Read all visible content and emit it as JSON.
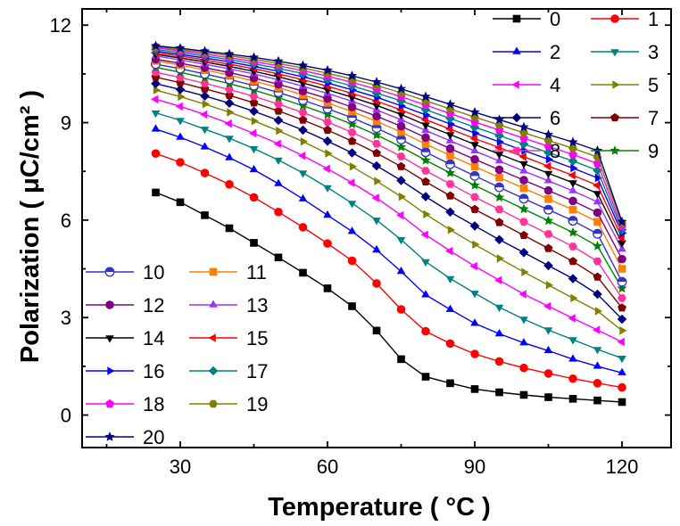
{
  "chart_data": {
    "type": "line",
    "xlabel": "Temperature ( °C )",
    "ylabel": "Polarization ( μC/cm² )",
    "xlim": [
      10,
      130
    ],
    "ylim": [
      -1,
      12.5
    ],
    "xticks": [
      30,
      60,
      90,
      120
    ],
    "yticks": [
      0,
      3,
      6,
      9,
      12
    ],
    "x": [
      25,
      30,
      35,
      40,
      45,
      50,
      55,
      60,
      65,
      70,
      75,
      80,
      85,
      90,
      95,
      100,
      105,
      110,
      115,
      120
    ],
    "series": [
      {
        "name": "0",
        "color": "#000000",
        "marker": "square",
        "values": [
          6.85,
          6.55,
          6.15,
          5.75,
          5.3,
          4.85,
          4.38,
          3.9,
          3.35,
          2.6,
          1.72,
          1.18,
          0.98,
          0.8,
          0.7,
          0.62,
          0.55,
          0.5,
          0.45,
          0.4
        ]
      },
      {
        "name": "1",
        "color": "#ff0000",
        "marker": "circle",
        "values": [
          8.05,
          7.78,
          7.45,
          7.1,
          6.7,
          6.25,
          5.78,
          5.28,
          4.75,
          4.05,
          3.25,
          2.58,
          2.2,
          1.88,
          1.65,
          1.45,
          1.28,
          1.12,
          0.98,
          0.85
        ]
      },
      {
        "name": "2",
        "color": "#0000ff",
        "marker": "triangle-up",
        "values": [
          8.8,
          8.55,
          8.25,
          7.92,
          7.55,
          7.12,
          6.65,
          6.15,
          5.65,
          5.08,
          4.42,
          3.7,
          3.25,
          2.82,
          2.5,
          2.22,
          1.98,
          1.72,
          1.5,
          1.3
        ]
      },
      {
        "name": "3",
        "color": "#008080",
        "marker": "triangle-down",
        "values": [
          9.3,
          9.07,
          8.8,
          8.52,
          8.2,
          7.85,
          7.45,
          7.0,
          6.52,
          6.0,
          5.4,
          4.72,
          4.2,
          3.75,
          3.32,
          2.95,
          2.62,
          2.32,
          2.02,
          1.75
        ]
      },
      {
        "name": "4",
        "color": "#ff00ff",
        "marker": "triangle-left",
        "values": [
          9.72,
          9.5,
          9.25,
          8.97,
          8.67,
          8.35,
          7.98,
          7.58,
          7.15,
          6.68,
          6.15,
          5.55,
          5.05,
          4.58,
          4.15,
          3.72,
          3.35,
          2.98,
          2.62,
          2.25
        ]
      },
      {
        "name": "5",
        "color": "#808000",
        "marker": "triangle-right",
        "values": [
          10.0,
          9.8,
          9.57,
          9.32,
          9.05,
          8.75,
          8.42,
          8.05,
          7.65,
          7.2,
          6.72,
          6.18,
          5.7,
          5.25,
          4.82,
          4.4,
          4.0,
          3.6,
          3.2,
          2.6
        ]
      },
      {
        "name": "6",
        "color": "#000080",
        "marker": "diamond",
        "values": [
          10.2,
          10.02,
          9.82,
          9.6,
          9.35,
          9.07,
          8.77,
          8.43,
          8.07,
          7.67,
          7.22,
          6.72,
          6.25,
          5.82,
          5.4,
          5.0,
          4.6,
          4.2,
          3.72,
          2.95
        ]
      },
      {
        "name": "7",
        "color": "#800000",
        "marker": "pentagon",
        "values": [
          10.4,
          10.23,
          10.04,
          9.84,
          9.61,
          9.36,
          9.08,
          8.77,
          8.43,
          8.06,
          7.65,
          7.18,
          6.75,
          6.33,
          5.93,
          5.53,
          5.13,
          4.73,
          4.25,
          3.3
        ]
      },
      {
        "name": "8",
        "color": "#ff3399",
        "marker": "hexagon",
        "values": [
          10.55,
          10.39,
          10.21,
          10.02,
          9.81,
          9.57,
          9.31,
          9.02,
          8.7,
          8.35,
          7.96,
          7.52,
          7.11,
          6.71,
          6.33,
          5.95,
          5.57,
          5.19,
          4.73,
          3.6
        ]
      },
      {
        "name": "9",
        "color": "#008000",
        "marker": "star",
        "values": [
          10.7,
          10.55,
          10.38,
          10.2,
          10.0,
          9.77,
          9.52,
          9.25,
          8.95,
          8.62,
          8.25,
          7.84,
          7.45,
          7.07,
          6.7,
          6.34,
          5.98,
          5.62,
          5.2,
          3.9
        ]
      },
      {
        "name": "10",
        "color": "#3333cc",
        "marker": "circle-half",
        "values": [
          10.8,
          10.66,
          10.5,
          10.33,
          10.14,
          9.93,
          9.69,
          9.43,
          9.15,
          8.83,
          8.48,
          8.09,
          7.72,
          7.36,
          7.01,
          6.66,
          6.32,
          5.98,
          5.58,
          4.1
        ]
      },
      {
        "name": "11",
        "color": "#ff8000",
        "marker": "square",
        "values": [
          10.9,
          10.77,
          10.62,
          10.46,
          10.28,
          10.08,
          9.85,
          9.61,
          9.34,
          9.04,
          8.71,
          8.34,
          7.99,
          7.65,
          7.31,
          6.98,
          6.65,
          6.32,
          5.95,
          4.5
        ]
      },
      {
        "name": "12",
        "color": "#800080",
        "marker": "circle",
        "values": [
          10.95,
          10.83,
          10.69,
          10.54,
          10.37,
          10.18,
          9.97,
          9.74,
          9.48,
          9.2,
          8.89,
          8.54,
          8.2,
          7.87,
          7.55,
          7.23,
          6.91,
          6.59,
          6.23,
          4.8
        ]
      },
      {
        "name": "13",
        "color": "#9933ff",
        "marker": "triangle-up",
        "values": [
          11.05,
          10.93,
          10.8,
          10.66,
          10.5,
          10.32,
          10.12,
          9.9,
          9.66,
          9.39,
          9.09,
          8.76,
          8.44,
          8.13,
          7.82,
          7.51,
          7.21,
          6.9,
          6.56,
          5.1
        ]
      },
      {
        "name": "14",
        "color": "#000000",
        "marker": "triangle-down",
        "values": [
          11.1,
          10.99,
          10.87,
          10.73,
          10.58,
          10.41,
          10.22,
          10.01,
          9.78,
          9.53,
          9.25,
          8.93,
          8.63,
          8.33,
          8.03,
          7.74,
          7.44,
          7.15,
          6.82,
          5.3
        ]
      },
      {
        "name": "15",
        "color": "#ff0000",
        "marker": "triangle-left",
        "values": [
          11.15,
          11.05,
          10.93,
          10.8,
          10.66,
          10.5,
          10.32,
          10.12,
          9.9,
          9.66,
          9.39,
          9.09,
          8.8,
          8.51,
          8.23,
          7.95,
          7.66,
          7.38,
          7.07,
          5.45
        ]
      },
      {
        "name": "16",
        "color": "#0000ff",
        "marker": "triangle-right",
        "values": [
          11.2,
          11.1,
          10.99,
          10.87,
          10.73,
          10.58,
          10.41,
          10.22,
          10.01,
          9.78,
          9.52,
          9.24,
          8.96,
          8.68,
          8.41,
          8.14,
          7.87,
          7.6,
          7.3,
          5.6
        ]
      },
      {
        "name": "17",
        "color": "#008080",
        "marker": "diamond",
        "values": [
          11.25,
          11.16,
          11.05,
          10.94,
          10.81,
          10.67,
          10.51,
          10.33,
          10.13,
          9.91,
          9.67,
          9.4,
          9.13,
          8.86,
          8.6,
          8.34,
          8.08,
          7.82,
          7.53,
          5.7
        ]
      },
      {
        "name": "18",
        "color": "#ff00ff",
        "marker": "pentagon",
        "values": [
          11.3,
          11.21,
          11.11,
          11.0,
          10.88,
          10.75,
          10.6,
          10.43,
          10.24,
          10.03,
          9.8,
          9.54,
          9.28,
          9.02,
          8.77,
          8.52,
          8.27,
          8.02,
          7.74,
          5.8
        ]
      },
      {
        "name": "19",
        "color": "#808000",
        "marker": "hexagon",
        "values": [
          11.33,
          11.25,
          11.16,
          11.06,
          10.95,
          10.82,
          10.68,
          10.52,
          10.34,
          10.14,
          9.92,
          9.67,
          9.42,
          9.17,
          8.93,
          8.69,
          8.45,
          8.21,
          7.94,
          5.9
        ]
      },
      {
        "name": "20",
        "color": "#000080",
        "marker": "star",
        "values": [
          11.36,
          11.29,
          11.2,
          11.11,
          11.01,
          10.89,
          10.76,
          10.61,
          10.44,
          10.25,
          10.04,
          9.8,
          9.56,
          9.32,
          9.09,
          8.86,
          8.63,
          8.4,
          8.14,
          5.95
        ]
      }
    ]
  }
}
